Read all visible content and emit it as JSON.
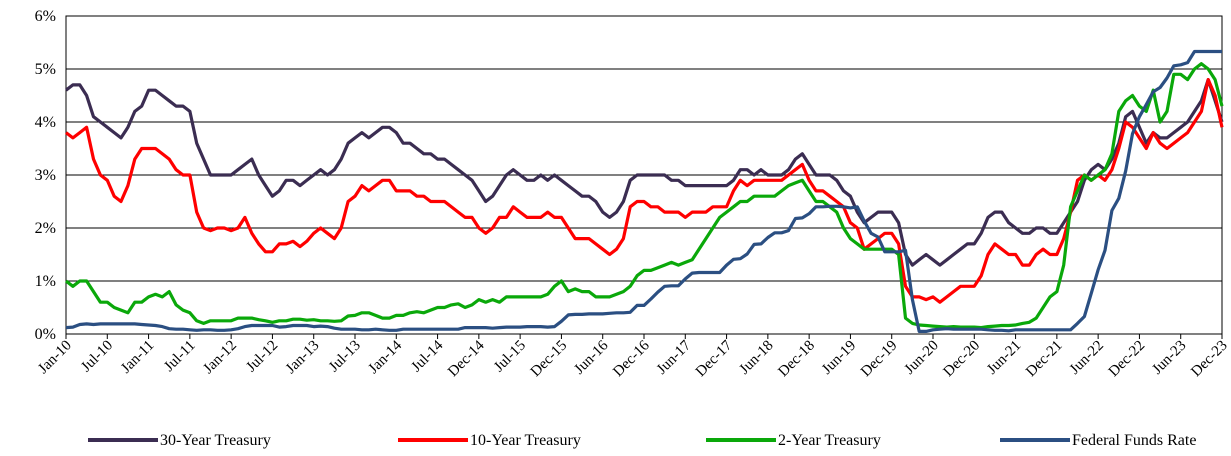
{
  "chart_data": {
    "type": "line",
    "categories": [
      "Jan-10",
      null,
      null,
      null,
      null,
      null,
      "Jul-10",
      null,
      null,
      null,
      null,
      null,
      "Jan-11",
      null,
      null,
      null,
      null,
      null,
      "Jul-11",
      null,
      null,
      null,
      null,
      null,
      "Jan-12",
      null,
      null,
      null,
      null,
      null,
      "Jul-12",
      null,
      null,
      null,
      null,
      null,
      "Jan-13",
      null,
      null,
      null,
      null,
      null,
      "Jul-13",
      null,
      null,
      null,
      null,
      null,
      "Jan-14",
      null,
      null,
      null,
      null,
      null,
      "Jul-14",
      null,
      null,
      null,
      null,
      null,
      "Dec-14",
      null,
      null,
      null,
      null,
      null,
      "Jul-15",
      null,
      null,
      null,
      null,
      null,
      "Dec-15",
      null,
      null,
      null,
      null,
      null,
      "Jun-16",
      null,
      null,
      null,
      null,
      null,
      "Dec-16",
      null,
      null,
      null,
      null,
      null,
      "Jun-17",
      null,
      null,
      null,
      null,
      null,
      "Dec-17",
      null,
      null,
      null,
      null,
      null,
      "Jun-18",
      null,
      null,
      null,
      null,
      null,
      "Dec-18",
      null,
      null,
      null,
      null,
      null,
      "Jun-19",
      null,
      null,
      null,
      null,
      null,
      "Dec-19",
      null,
      null,
      null,
      null,
      null,
      "Jun-20",
      null,
      null,
      null,
      null,
      null,
      "Dec-20",
      null,
      null,
      null,
      null,
      null,
      "Jun-21",
      null,
      null,
      null,
      null,
      null,
      "Dec-21",
      null,
      null,
      null,
      null,
      null,
      "Jun-22",
      null,
      null,
      null,
      null,
      null,
      "Dec-22",
      null,
      null,
      null,
      null,
      null,
      "Jun-23",
      null,
      null,
      null,
      null,
      null,
      "Dec-23"
    ],
    "series": [
      {
        "name": "30-Year Treasury",
        "color": "#3b2d52",
        "values": [
          4.6,
          4.7,
          4.7,
          4.5,
          4.1,
          4.0,
          3.9,
          3.8,
          3.7,
          3.9,
          4.2,
          4.3,
          4.6,
          4.6,
          4.5,
          4.4,
          4.3,
          4.3,
          4.2,
          3.6,
          3.3,
          3.0,
          3.0,
          3.0,
          3.0,
          3.1,
          3.2,
          3.3,
          3.0,
          2.8,
          2.6,
          2.7,
          2.9,
          2.9,
          2.8,
          2.9,
          3.0,
          3.1,
          3.0,
          3.1,
          3.3,
          3.6,
          3.7,
          3.8,
          3.7,
          3.8,
          3.9,
          3.9,
          3.8,
          3.6,
          3.6,
          3.5,
          3.4,
          3.4,
          3.3,
          3.3,
          3.2,
          3.1,
          3.0,
          2.9,
          2.7,
          2.5,
          2.6,
          2.8,
          3.0,
          3.1,
          3.0,
          2.9,
          2.9,
          3.0,
          2.9,
          3.0,
          2.9,
          2.8,
          2.7,
          2.6,
          2.6,
          2.5,
          2.3,
          2.2,
          2.3,
          2.5,
          2.9,
          3.0,
          3.0,
          3.0,
          3.0,
          3.0,
          2.9,
          2.9,
          2.8,
          2.8,
          2.8,
          2.8,
          2.8,
          2.8,
          2.8,
          2.9,
          3.1,
          3.1,
          3.0,
          3.1,
          3.0,
          3.0,
          3.0,
          3.1,
          3.3,
          3.4,
          3.2,
          3.0,
          3.0,
          3.0,
          2.9,
          2.7,
          2.6,
          2.3,
          2.1,
          2.2,
          2.3,
          2.3,
          2.3,
          2.1,
          1.5,
          1.3,
          1.4,
          1.5,
          1.4,
          1.3,
          1.4,
          1.5,
          1.6,
          1.7,
          1.7,
          1.9,
          2.2,
          2.3,
          2.3,
          2.1,
          2.0,
          1.9,
          1.9,
          2.0,
          2.0,
          1.9,
          1.9,
          2.1,
          2.3,
          2.5,
          2.9,
          3.1,
          3.2,
          3.1,
          3.3,
          3.6,
          4.1,
          4.2,
          3.9,
          3.6,
          3.8,
          3.7,
          3.7,
          3.8,
          3.9,
          4.0,
          4.2,
          4.4,
          4.8,
          4.4,
          4.0
        ]
      },
      {
        "name": "10-Year Treasury",
        "color": "#ff0000",
        "values": [
          3.8,
          3.7,
          3.8,
          3.9,
          3.3,
          3.0,
          2.9,
          2.6,
          2.5,
          2.8,
          3.3,
          3.5,
          3.5,
          3.5,
          3.4,
          3.3,
          3.1,
          3.0,
          3.0,
          2.3,
          2.0,
          1.95,
          2.0,
          2.0,
          1.95,
          2.0,
          2.2,
          1.9,
          1.7,
          1.55,
          1.55,
          1.7,
          1.7,
          1.75,
          1.65,
          1.75,
          1.9,
          2.0,
          1.9,
          1.8,
          2.0,
          2.5,
          2.6,
          2.8,
          2.7,
          2.8,
          2.9,
          2.9,
          2.7,
          2.7,
          2.7,
          2.6,
          2.6,
          2.5,
          2.5,
          2.5,
          2.4,
          2.3,
          2.2,
          2.2,
          2.0,
          1.9,
          2.0,
          2.2,
          2.2,
          2.4,
          2.3,
          2.2,
          2.2,
          2.2,
          2.3,
          2.2,
          2.2,
          2.0,
          1.8,
          1.8,
          1.8,
          1.7,
          1.6,
          1.5,
          1.6,
          1.8,
          2.4,
          2.5,
          2.5,
          2.4,
          2.4,
          2.3,
          2.3,
          2.3,
          2.2,
          2.3,
          2.3,
          2.3,
          2.4,
          2.4,
          2.4,
          2.7,
          2.9,
          2.8,
          2.9,
          2.9,
          2.9,
          2.9,
          2.9,
          3.0,
          3.1,
          3.2,
          2.9,
          2.7,
          2.7,
          2.6,
          2.5,
          2.4,
          2.1,
          2.0,
          1.6,
          1.7,
          1.8,
          1.9,
          1.9,
          1.7,
          0.9,
          0.7,
          0.7,
          0.65,
          0.7,
          0.6,
          0.7,
          0.8,
          0.9,
          0.9,
          0.9,
          1.1,
          1.5,
          1.7,
          1.6,
          1.5,
          1.5,
          1.3,
          1.3,
          1.5,
          1.6,
          1.5,
          1.5,
          1.8,
          2.3,
          2.9,
          3.0,
          2.9,
          3.0,
          2.9,
          3.1,
          3.5,
          4.0,
          3.9,
          3.7,
          3.5,
          3.8,
          3.6,
          3.5,
          3.6,
          3.7,
          3.8,
          4.0,
          4.2,
          4.8,
          4.5,
          3.9
        ]
      },
      {
        "name": "2-Year Treasury",
        "color": "#0aa80a",
        "values": [
          1.0,
          0.9,
          1.0,
          1.0,
          0.8,
          0.6,
          0.6,
          0.5,
          0.45,
          0.4,
          0.6,
          0.6,
          0.7,
          0.75,
          0.7,
          0.8,
          0.55,
          0.45,
          0.4,
          0.25,
          0.2,
          0.25,
          0.25,
          0.25,
          0.25,
          0.3,
          0.3,
          0.3,
          0.27,
          0.25,
          0.22,
          0.25,
          0.25,
          0.28,
          0.28,
          0.26,
          0.27,
          0.25,
          0.25,
          0.24,
          0.25,
          0.34,
          0.35,
          0.4,
          0.4,
          0.35,
          0.3,
          0.3,
          0.35,
          0.35,
          0.4,
          0.42,
          0.4,
          0.45,
          0.5,
          0.5,
          0.55,
          0.57,
          0.5,
          0.55,
          0.65,
          0.6,
          0.65,
          0.6,
          0.7,
          0.7,
          0.7,
          0.7,
          0.7,
          0.7,
          0.75,
          0.9,
          1.0,
          0.8,
          0.85,
          0.8,
          0.8,
          0.7,
          0.7,
          0.7,
          0.75,
          0.8,
          0.9,
          1.1,
          1.2,
          1.2,
          1.25,
          1.3,
          1.35,
          1.3,
          1.35,
          1.4,
          1.6,
          1.8,
          2.0,
          2.2,
          2.3,
          2.4,
          2.5,
          2.5,
          2.6,
          2.6,
          2.6,
          2.6,
          2.7,
          2.8,
          2.85,
          2.9,
          2.7,
          2.5,
          2.5,
          2.4,
          2.3,
          2.0,
          1.8,
          1.7,
          1.6,
          1.6,
          1.6,
          1.6,
          1.6,
          1.5,
          0.3,
          0.2,
          0.17,
          0.16,
          0.15,
          0.14,
          0.13,
          0.14,
          0.13,
          0.13,
          0.13,
          0.12,
          0.14,
          0.15,
          0.16,
          0.16,
          0.17,
          0.2,
          0.22,
          0.3,
          0.5,
          0.7,
          0.8,
          1.3,
          2.4,
          2.7,
          3.0,
          2.9,
          3.0,
          3.1,
          3.4,
          4.2,
          4.4,
          4.5,
          4.3,
          4.2,
          4.6,
          4.0,
          4.2,
          4.9,
          4.9,
          4.8,
          5.0,
          5.1,
          5.0,
          4.8,
          4.3
        ]
      },
      {
        "name": "Federal Funds Rate",
        "color": "#2b4f82",
        "values": [
          0.12,
          0.13,
          0.18,
          0.19,
          0.18,
          0.19,
          0.19,
          0.19,
          0.19,
          0.19,
          0.19,
          0.18,
          0.17,
          0.16,
          0.14,
          0.1,
          0.09,
          0.09,
          0.08,
          0.07,
          0.08,
          0.08,
          0.07,
          0.07,
          0.08,
          0.1,
          0.14,
          0.16,
          0.16,
          0.16,
          0.16,
          0.13,
          0.14,
          0.16,
          0.16,
          0.16,
          0.14,
          0.15,
          0.14,
          0.11,
          0.09,
          0.09,
          0.09,
          0.08,
          0.08,
          0.09,
          0.08,
          0.07,
          0.07,
          0.09,
          0.09,
          0.09,
          0.09,
          0.09,
          0.09,
          0.09,
          0.09,
          0.09,
          0.12,
          0.12,
          0.12,
          0.12,
          0.11,
          0.12,
          0.13,
          0.13,
          0.13,
          0.14,
          0.14,
          0.14,
          0.13,
          0.14,
          0.24,
          0.36,
          0.37,
          0.37,
          0.38,
          0.38,
          0.38,
          0.39,
          0.4,
          0.4,
          0.41,
          0.54,
          0.54,
          0.66,
          0.79,
          0.9,
          0.91,
          0.91,
          1.04,
          1.15,
          1.16,
          1.16,
          1.16,
          1.16,
          1.3,
          1.41,
          1.42,
          1.51,
          1.69,
          1.7,
          1.82,
          1.91,
          1.91,
          1.95,
          2.18,
          2.19,
          2.27,
          2.4,
          2.4,
          2.41,
          2.41,
          2.4,
          2.38,
          2.4,
          2.13,
          1.9,
          1.83,
          1.55,
          1.55,
          1.55,
          1.58,
          0.65,
          0.05,
          0.05,
          0.08,
          0.09,
          0.1,
          0.09,
          0.09,
          0.09,
          0.09,
          0.09,
          0.08,
          0.07,
          0.07,
          0.06,
          0.08,
          0.08,
          0.08,
          0.08,
          0.08,
          0.08,
          0.08,
          0.08,
          0.08,
          0.2,
          0.33,
          0.77,
          1.21,
          1.58,
          2.33,
          2.56,
          3.08,
          3.78,
          4.1,
          4.33,
          4.57,
          4.65,
          4.83,
          5.06,
          5.08,
          5.12,
          5.33,
          5.33,
          5.33,
          5.33,
          5.33
        ]
      }
    ],
    "ylim": [
      0,
      6
    ],
    "yticks": [
      {
        "value": 0,
        "label": "0%"
      },
      {
        "value": 1,
        "label": "1%"
      },
      {
        "value": 2,
        "label": "2%"
      },
      {
        "value": 3,
        "label": "3%"
      },
      {
        "value": 4,
        "label": "4%"
      },
      {
        "value": 5,
        "label": "5%"
      },
      {
        "value": 6,
        "label": "6%"
      }
    ],
    "grid": true,
    "legend": "bottom"
  }
}
